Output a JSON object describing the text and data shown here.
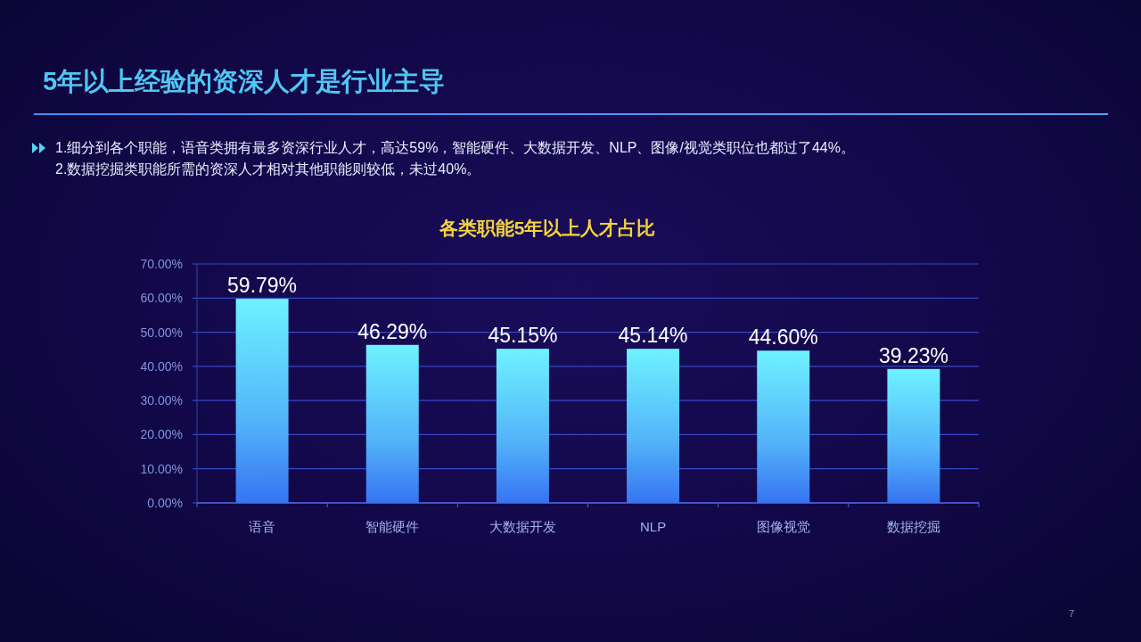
{
  "chart_data": {
    "type": "bar",
    "title": "5年以上经验的资深人才是行业主导",
    "subtitle": "各类职能5年以上人才占比",
    "annotations": [
      "1.细分到各个职能，语音类拥有最多资深行业人才，高达59%，智能硬件、大数据开发、NLP、图像/视觉类职位也都过了44%。",
      "2.数据挖掘类职能所需的资深人才相对其他职能则较低，未过40%。",
      "7"
    ],
    "categories": [
      "语音",
      "智能硬件",
      "大数据开发",
      "NLP",
      "图像视觉",
      "数据挖掘"
    ],
    "values": [
      59.79,
      46.29,
      45.15,
      45.14,
      44.6,
      39.23
    ],
    "value_labels": [
      "59.79%",
      "46.29%",
      "45.15%",
      "45.14%",
      "44.60%",
      "39.23%"
    ],
    "color": "#6ef2ff",
    "ylim": [
      0,
      70
    ],
    "yticks": [
      {
        "value": 0,
        "label": "0.00%"
      },
      {
        "value": 10,
        "label": "10.00%"
      },
      {
        "value": 20,
        "label": "20.00%"
      },
      {
        "value": 30,
        "label": "30.00%"
      },
      {
        "value": 40,
        "label": "40.00%"
      },
      {
        "value": 50,
        "label": "50.00%"
      },
      {
        "value": 60,
        "label": "60.00%"
      },
      {
        "value": 70,
        "label": "70.00%"
      }
    ],
    "grid": "y"
  }
}
